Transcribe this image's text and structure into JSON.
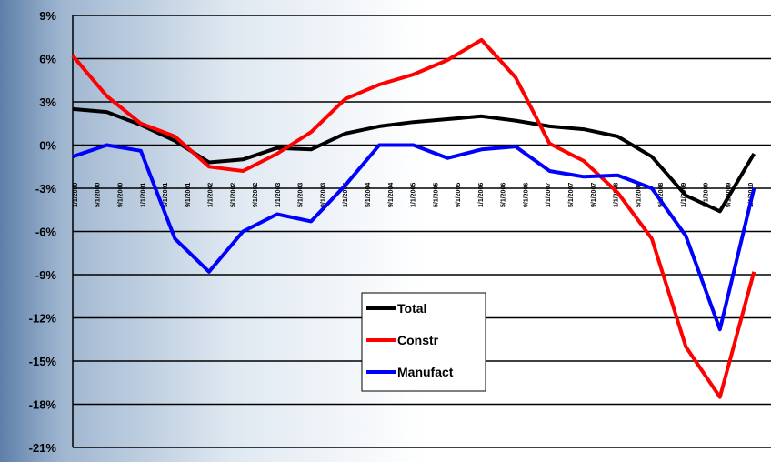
{
  "chart_data": {
    "type": "line",
    "yticks": [
      "9%",
      "6%",
      "3%",
      "0%",
      "-3%",
      "-6%",
      "-9%",
      "-12%",
      "-15%",
      "-18%",
      "-21%"
    ],
    "ylim": [
      -21,
      9
    ],
    "x": [
      2000.0,
      2000.5,
      2001.0,
      2001.5,
      2002.0,
      2002.5,
      2003.0,
      2003.5,
      2004.0,
      2004.5,
      2005.0,
      2005.5,
      2006.0,
      2006.5,
      2007.0,
      2007.5,
      2008.0,
      2008.5,
      2009.0,
      2009.5,
      2010.0
    ],
    "xlim": [
      2000.0,
      2010.25
    ],
    "xticks": [
      "1/1/2000",
      "5/1/2000",
      "9/1/2000",
      "1/1/2001",
      "5/1/2001",
      "9/1/2001",
      "1/1/2002",
      "5/1/2002",
      "9/1/2002",
      "1/1/2003",
      "5/1/2003",
      "9/1/2003",
      "1/1/2004",
      "5/1/2004",
      "9/1/2004",
      "1/1/2005",
      "5/1/2005",
      "9/1/2005",
      "1/1/2006",
      "5/1/2006",
      "9/1/2006",
      "1/1/2007",
      "5/1/2007",
      "9/1/2007",
      "1/1/2008",
      "5/1/2008",
      "9/1/2008",
      "1/1/2009",
      "5/1/2009",
      "9/1/2009",
      "1/1/2010"
    ],
    "grid": true,
    "legend": "center",
    "series": [
      {
        "name": "Total",
        "color": "#000000",
        "values": [
          2.5,
          2.3,
          1.4,
          0.3,
          -1.2,
          -1.0,
          -0.2,
          -0.3,
          0.8,
          1.3,
          1.6,
          1.8,
          2.0,
          1.7,
          1.3,
          1.1,
          0.6,
          -0.8,
          -3.5,
          -4.6,
          -0.6
        ]
      },
      {
        "name": "Constr",
        "color": "#ff0000",
        "values": [
          6.2,
          3.4,
          1.5,
          0.6,
          -1.5,
          -1.8,
          -0.6,
          0.9,
          3.2,
          4.2,
          4.9,
          5.9,
          7.3,
          4.7,
          0.1,
          -1.1,
          -3.3,
          -6.5,
          -14.0,
          -17.5,
          -8.8
        ]
      },
      {
        "name": "Manufact",
        "color": "#0000ff",
        "values": [
          -0.8,
          0.0,
          -0.4,
          -6.5,
          -8.8,
          -6.0,
          -4.8,
          -5.3,
          -2.8,
          0.0,
          0.0,
          -0.9,
          -0.3,
          -0.1,
          -1.8,
          -2.2,
          -2.1,
          -3.0,
          -6.3,
          -12.8,
          -3.0
        ]
      }
    ]
  }
}
